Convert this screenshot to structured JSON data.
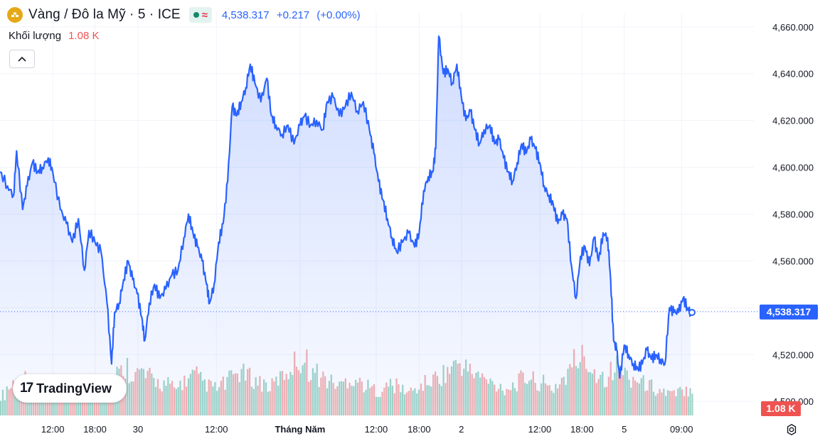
{
  "header": {
    "symbol_title": "Vàng / Đô la Mỹ · 5 · ICE",
    "last_price": "4,538.317",
    "change": "+0.217",
    "change_pct": "(+0.00%)",
    "accent_color": "#2962ff"
  },
  "volume": {
    "label": "Khối lượng",
    "value": "1.08 K"
  },
  "badges": {
    "price": "4,538.317",
    "volume": "1.08 K"
  },
  "logo": {
    "mark": "17",
    "text": "TradingView"
  },
  "icons": {
    "coin": "gold-coin-icon",
    "status": "market-status-dot-icon",
    "wave": "wave-icon",
    "collapse": "chevron-up-icon",
    "settings": "gear-icon"
  },
  "chart_data": {
    "type": "area",
    "title": "",
    "xlabel": "",
    "ylabel": "",
    "ylim": [
      4494,
      4666
    ],
    "y_ticks": [
      "4,500.000",
      "4,520.000",
      "4,540.000",
      "4,560.000",
      "4,580.000",
      "4,600.000",
      "4,620.000",
      "4,640.000",
      "4,660.000"
    ],
    "y_tick_values": [
      4500,
      4520,
      4540,
      4560,
      4580,
      4600,
      4620,
      4640,
      4660
    ],
    "x_ticks": [
      {
        "label": "12:00",
        "t": 0.07
      },
      {
        "label": "18:00",
        "t": 0.126
      },
      {
        "label": "30",
        "t": 0.183
      },
      {
        "label": "12:00",
        "t": 0.287
      },
      {
        "label": "Tháng Năm",
        "t": 0.398
      },
      {
        "label": "12:00",
        "t": 0.499
      },
      {
        "label": "18:00",
        "t": 0.556
      },
      {
        "label": "2",
        "t": 0.612
      },
      {
        "label": "12:00",
        "t": 0.716
      },
      {
        "label": "18:00",
        "t": 0.772
      },
      {
        "label": "5",
        "t": 0.828
      },
      {
        "label": "09:00",
        "t": 0.904
      }
    ],
    "x_end": 0.92,
    "last_value": 4538.317,
    "series": [
      {
        "values": [
          [
            0.0,
            4598
          ],
          [
            0.01,
            4592
          ],
          [
            0.018,
            4588
          ],
          [
            0.022,
            4607
          ],
          [
            0.03,
            4582
          ],
          [
            0.036,
            4592
          ],
          [
            0.043,
            4602
          ],
          [
            0.05,
            4598
          ],
          [
            0.056,
            4600
          ],
          [
            0.064,
            4604
          ],
          [
            0.07,
            4598
          ],
          [
            0.08,
            4582
          ],
          [
            0.088,
            4576
          ],
          [
            0.096,
            4568
          ],
          [
            0.104,
            4578
          ],
          [
            0.112,
            4556
          ],
          [
            0.118,
            4573
          ],
          [
            0.126,
            4568
          ],
          [
            0.134,
            4564
          ],
          [
            0.142,
            4542
          ],
          [
            0.148,
            4516
          ],
          [
            0.152,
            4538
          ],
          [
            0.158,
            4542
          ],
          [
            0.164,
            4552
          ],
          [
            0.17,
            4560
          ],
          [
            0.176,
            4552
          ],
          [
            0.182,
            4546
          ],
          [
            0.188,
            4536
          ],
          [
            0.192,
            4526
          ],
          [
            0.198,
            4542
          ],
          [
            0.205,
            4550
          ],
          [
            0.212,
            4544
          ],
          [
            0.22,
            4548
          ],
          [
            0.228,
            4554
          ],
          [
            0.236,
            4556
          ],
          [
            0.244,
            4570
          ],
          [
            0.25,
            4580
          ],
          [
            0.256,
            4572
          ],
          [
            0.262,
            4566
          ],
          [
            0.268,
            4560
          ],
          [
            0.274,
            4550
          ],
          [
            0.278,
            4542
          ],
          [
            0.284,
            4550
          ],
          [
            0.29,
            4568
          ],
          [
            0.296,
            4576
          ],
          [
            0.302,
            4594
          ],
          [
            0.308,
            4626
          ],
          [
            0.314,
            4622
          ],
          [
            0.32,
            4628
          ],
          [
            0.326,
            4634
          ],
          [
            0.332,
            4644
          ],
          [
            0.338,
            4636
          ],
          [
            0.346,
            4628
          ],
          [
            0.354,
            4638
          ],
          [
            0.36,
            4622
          ],
          [
            0.366,
            4618
          ],
          [
            0.374,
            4614
          ],
          [
            0.382,
            4618
          ],
          [
            0.39,
            4610
          ],
          [
            0.398,
            4618
          ],
          [
            0.404,
            4622
          ],
          [
            0.412,
            4618
          ],
          [
            0.42,
            4620
          ],
          [
            0.428,
            4616
          ],
          [
            0.434,
            4628
          ],
          [
            0.442,
            4630
          ],
          [
            0.45,
            4622
          ],
          [
            0.458,
            4626
          ],
          [
            0.466,
            4632
          ],
          [
            0.474,
            4624
          ],
          [
            0.482,
            4628
          ],
          [
            0.49,
            4616
          ],
          [
            0.496,
            4606
          ],
          [
            0.502,
            4594
          ],
          [
            0.508,
            4586
          ],
          [
            0.514,
            4578
          ],
          [
            0.52,
            4570
          ],
          [
            0.526,
            4564
          ],
          [
            0.534,
            4568
          ],
          [
            0.542,
            4572
          ],
          [
            0.55,
            4566
          ],
          [
            0.556,
            4572
          ],
          [
            0.562,
            4590
          ],
          [
            0.568,
            4596
          ],
          [
            0.574,
            4598
          ],
          [
            0.578,
            4608
          ],
          [
            0.582,
            4656
          ],
          [
            0.588,
            4640
          ],
          [
            0.594,
            4642
          ],
          [
            0.6,
            4636
          ],
          [
            0.606,
            4644
          ],
          [
            0.612,
            4630
          ],
          [
            0.618,
            4620
          ],
          [
            0.624,
            4624
          ],
          [
            0.63,
            4616
          ],
          [
            0.636,
            4610
          ],
          [
            0.642,
            4616
          ],
          [
            0.65,
            4618
          ],
          [
            0.656,
            4610
          ],
          [
            0.662,
            4612
          ],
          [
            0.668,
            4604
          ],
          [
            0.674,
            4598
          ],
          [
            0.68,
            4594
          ],
          [
            0.686,
            4602
          ],
          [
            0.692,
            4610
          ],
          [
            0.698,
            4606
          ],
          [
            0.704,
            4612
          ],
          [
            0.71,
            4608
          ],
          [
            0.716,
            4602
          ],
          [
            0.722,
            4592
          ],
          [
            0.728,
            4588
          ],
          [
            0.734,
            4584
          ],
          [
            0.74,
            4576
          ],
          [
            0.746,
            4580
          ],
          [
            0.752,
            4578
          ],
          [
            0.758,
            4558
          ],
          [
            0.764,
            4544
          ],
          [
            0.77,
            4562
          ],
          [
            0.776,
            4566
          ],
          [
            0.782,
            4558
          ],
          [
            0.788,
            4570
          ],
          [
            0.794,
            4560
          ],
          [
            0.8,
            4572
          ],
          [
            0.806,
            4570
          ],
          [
            0.81,
            4552
          ],
          [
            0.814,
            4526
          ],
          [
            0.818,
            4522
          ],
          [
            0.822,
            4510
          ],
          [
            0.828,
            4524
          ],
          [
            0.834,
            4520
          ],
          [
            0.84,
            4516
          ],
          [
            0.846,
            4514
          ],
          [
            0.852,
            4516
          ],
          [
            0.858,
            4522
          ],
          [
            0.864,
            4518
          ],
          [
            0.87,
            4520
          ],
          [
            0.876,
            4518
          ],
          [
            0.882,
            4516
          ],
          [
            0.888,
            4540
          ],
          [
            0.894,
            4538
          ],
          [
            0.9,
            4538
          ],
          [
            0.906,
            4544
          ],
          [
            0.912,
            4540
          ],
          [
            0.916,
            4538
          ]
        ]
      }
    ],
    "volume_values": [
      0.22,
      0.3,
      0.35,
      0.28,
      0.4,
      0.32,
      0.27,
      0.38,
      0.3,
      0.25,
      0.33,
      0.36,
      0.29,
      0.31,
      0.42,
      0.34,
      0.28,
      0.3,
      0.37,
      0.41,
      0.45,
      0.52,
      0.48,
      0.44,
      0.46,
      0.4,
      0.38,
      0.35,
      0.33,
      0.3,
      0.28,
      0.36,
      0.39,
      0.42,
      0.37,
      0.34,
      0.31,
      0.29,
      0.33,
      0.38,
      0.44,
      0.47,
      0.43,
      0.4,
      0.36,
      0.34,
      0.31,
      0.35,
      0.4,
      0.46,
      0.55,
      0.6,
      0.57,
      0.5,
      0.45,
      0.41,
      0.38,
      0.35,
      0.32,
      0.36,
      0.4,
      0.38,
      0.34,
      0.3,
      0.28,
      0.26,
      0.29,
      0.33,
      0.31,
      0.28,
      0.25,
      0.27,
      0.3,
      0.34,
      0.37,
      0.4,
      0.44,
      0.48,
      0.52,
      0.56,
      0.5,
      0.46,
      0.43,
      0.39,
      0.36,
      0.33,
      0.31,
      0.29,
      0.32,
      0.35,
      0.38,
      0.41,
      0.37,
      0.34,
      0.3,
      0.28,
      0.33,
      0.4,
      0.48,
      0.58,
      0.62,
      0.55,
      0.5,
      0.45,
      0.42,
      0.47,
      0.52,
      0.49,
      0.44,
      0.4,
      0.37,
      0.34,
      0.31,
      0.28,
      0.26,
      0.24,
      0.22,
      0.25,
      0.28,
      0.3
    ]
  }
}
